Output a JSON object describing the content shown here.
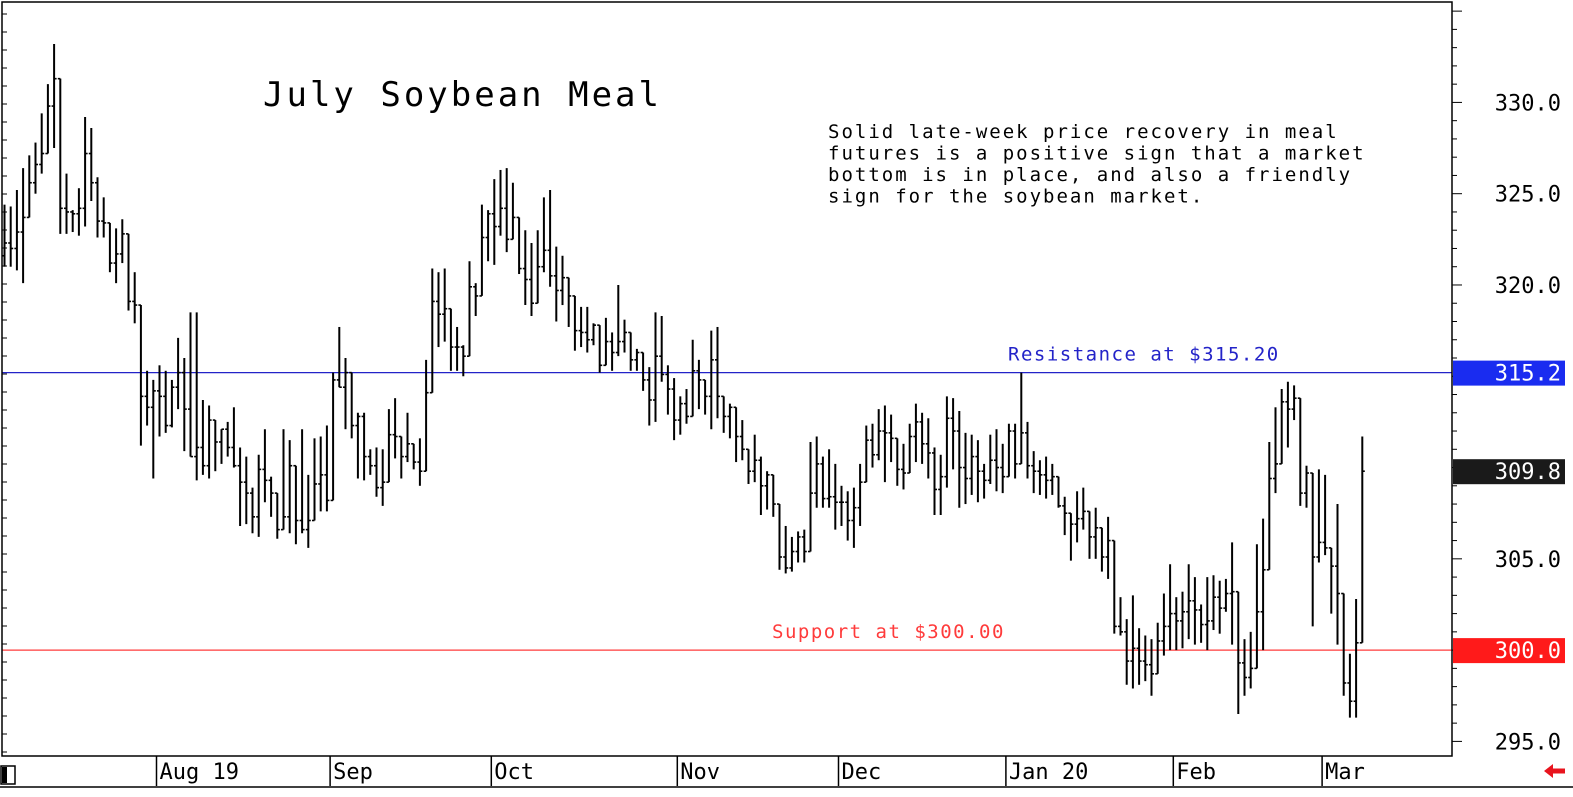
{
  "chart_data": {
    "type": "ohlc",
    "title": "July Soybean Meal",
    "annotation": [
      "Solid late-week price recovery in meal",
      "futures is a positive sign that a market",
      "bottom is in place, and also a friendly",
      "sign for the soybean market."
    ],
    "ylim": [
      294.2,
      335.5
    ],
    "y_ticks": [
      {
        "value": 330,
        "label": "330.0"
      },
      {
        "value": 325,
        "label": "325.0"
      },
      {
        "value": 320,
        "label": "320.0"
      },
      {
        "value": 305,
        "label": "305.0"
      },
      {
        "value": 295,
        "label": "295.0"
      }
    ],
    "x_ticks": [
      {
        "bar": 25,
        "label": "Aug 19"
      },
      {
        "bar": 53,
        "label": "Sep"
      },
      {
        "bar": 79,
        "label": "Oct"
      },
      {
        "bar": 109,
        "label": "Nov"
      },
      {
        "bar": 135,
        "label": "Dec"
      },
      {
        "bar": 162,
        "label": "Jan 20"
      },
      {
        "bar": 189,
        "label": "Feb"
      },
      {
        "bar": 213,
        "label": "Mar"
      }
    ],
    "horizontal_lines": [
      {
        "name": "resistance",
        "value": 315.2,
        "label": "Resistance at $315.20",
        "badge": "315.2",
        "color": "#2323c8",
        "badge_color": "#1a2cf0"
      },
      {
        "name": "support",
        "value": 300.0,
        "label": "Support at $300.00",
        "badge": "300.0",
        "color": "#ff3b3b",
        "badge_color": "#ff1a1a"
      }
    ],
    "last_price": {
      "value": 309.8,
      "label": "309.8",
      "badge_color": "#1a1a1a"
    },
    "bars": [
      [
        321.6,
        324.4,
        321.0,
        322.3
      ],
      [
        322.3,
        324.3,
        321.0,
        322.0
      ],
      [
        322.0,
        325.2,
        320.8,
        322.9
      ],
      [
        322.9,
        326.4,
        320.1,
        323.7
      ],
      [
        323.7,
        327.1,
        324.0,
        325.6
      ],
      [
        325.6,
        327.8,
        325.0,
        326.6
      ],
      [
        326.6,
        329.4,
        326.1,
        327.2
      ],
      [
        327.2,
        331.0,
        327.8,
        329.8
      ],
      [
        329.8,
        333.2,
        327.5,
        331.3
      ],
      [
        331.3,
        327.1,
        322.8,
        324.2
      ],
      [
        324.2,
        326.1,
        322.8,
        324.0
      ],
      [
        324.0,
        324.1,
        322.9,
        323.9
      ],
      [
        323.9,
        325.3,
        322.7,
        324.2
      ],
      [
        324.2,
        329.2,
        323.2,
        327.2
      ],
      [
        327.2,
        328.6,
        324.6,
        325.6
      ],
      [
        325.6,
        325.9,
        322.6,
        323.5
      ],
      [
        323.5,
        324.8,
        322.6,
        323.4
      ],
      [
        323.4,
        323.4,
        320.7,
        321.2
      ],
      [
        321.2,
        323.1,
        320.1,
        321.7
      ],
      [
        321.7,
        323.6,
        321.2,
        322.8
      ],
      [
        322.8,
        322.6,
        318.6,
        319.1
      ],
      [
        319.1,
        320.7,
        317.9,
        318.9
      ],
      [
        318.9,
        317.5,
        311.2,
        313.9
      ],
      [
        313.9,
        315.3,
        312.3,
        313.3
      ],
      [
        313.3,
        314.8,
        309.4,
        314.2
      ],
      [
        314.2,
        315.6,
        311.7,
        313.9
      ],
      [
        313.9,
        315.3,
        311.9,
        312.3
      ],
      [
        312.3,
        314.8,
        312.2,
        314.4
      ],
      [
        314.4,
        317.1,
        313.2,
        315.2
      ],
      [
        315.2,
        316.0,
        310.9,
        313.2
      ],
      [
        313.2,
        318.5,
        310.6,
        310.6
      ],
      [
        310.6,
        318.5,
        309.3,
        311.1
      ],
      [
        311.1,
        313.7,
        309.6,
        310.1
      ],
      [
        310.1,
        313.4,
        309.4,
        312.6
      ],
      [
        312.6,
        312.6,
        309.8,
        311.4
      ],
      [
        311.4,
        312.1,
        310.2,
        312.1
      ],
      [
        312.1,
        312.5,
        310.6,
        311.1
      ],
      [
        311.1,
        313.3,
        310.0,
        310.1
      ],
      [
        310.1,
        311.1,
        306.8,
        309.2
      ],
      [
        309.2,
        310.6,
        306.9,
        308.6
      ],
      [
        308.6,
        308.9,
        306.4,
        307.3
      ],
      [
        307.3,
        310.7,
        306.2,
        309.9
      ],
      [
        309.9,
        312.1,
        308.1,
        309.3
      ],
      [
        309.3,
        309.5,
        307.3,
        308.6
      ],
      [
        308.6,
        307.4,
        306.1,
        306.6
      ],
      [
        306.6,
        312.1,
        306.7,
        307.3
      ],
      [
        307.3,
        311.5,
        306.4,
        310.1
      ],
      [
        310.1,
        307.7,
        305.8,
        307.1
      ],
      [
        307.1,
        312.1,
        306.4,
        306.6
      ],
      [
        306.6,
        309.6,
        305.6,
        307.1
      ],
      [
        307.1,
        311.6,
        307.1,
        309.1
      ],
      [
        309.1,
        311.7,
        307.6,
        309.6
      ],
      [
        309.6,
        312.3,
        307.6,
        308.2
      ],
      [
        308.2,
        315.2,
        310.4,
        314.8
      ],
      [
        314.8,
        317.7,
        314.4,
        314.4
      ],
      [
        314.4,
        316.0,
        312.1,
        315.2
      ],
      [
        315.2,
        313.6,
        311.6,
        312.3
      ],
      [
        312.3,
        313.0,
        309.4,
        312.8
      ],
      [
        312.8,
        313.0,
        309.3,
        310.6
      ],
      [
        310.6,
        311.0,
        309.6,
        310.1
      ],
      [
        310.1,
        311.1,
        308.4,
        308.9
      ],
      [
        308.9,
        311.0,
        307.9,
        309.2
      ],
      [
        309.2,
        313.2,
        309.8,
        311.8
      ],
      [
        311.8,
        313.8,
        310.5,
        311.7
      ],
      [
        311.7,
        311.0,
        309.4,
        310.6
      ],
      [
        310.6,
        313.0,
        310.3,
        311.3
      ],
      [
        311.3,
        311.3,
        309.9,
        310.3
      ],
      [
        310.3,
        311.6,
        309.0,
        309.8
      ],
      [
        309.8,
        315.9,
        310.2,
        314.1
      ],
      [
        314.1,
        320.9,
        315.3,
        319.1
      ],
      [
        319.1,
        320.7,
        316.6,
        318.4
      ],
      [
        318.4,
        320.9,
        316.9,
        318.7
      ],
      [
        318.7,
        318.0,
        315.3,
        316.6
      ],
      [
        316.6,
        317.7,
        315.3,
        316.6
      ],
      [
        316.6,
        316.7,
        315.0,
        316.1
      ],
      [
        316.1,
        321.3,
        316.5,
        319.9
      ],
      [
        319.9,
        320.1,
        318.3,
        319.4
      ],
      [
        319.4,
        324.4,
        320.0,
        322.6
      ],
      [
        322.6,
        324.1,
        321.3,
        323.9
      ],
      [
        323.9,
        325.8,
        321.1,
        323.2
      ],
      [
        323.2,
        326.3,
        322.7,
        324.2
      ],
      [
        324.2,
        326.4,
        321.8,
        322.5
      ],
      [
        322.5,
        325.6,
        322.5,
        323.7
      ],
      [
        323.7,
        323.4,
        320.6,
        320.9
      ],
      [
        320.9,
        323.0,
        318.9,
        320.3
      ],
      [
        320.3,
        322.3,
        318.3,
        319.0
      ],
      [
        319.0,
        323.0,
        320.1,
        321.0
      ],
      [
        321.0,
        324.8,
        320.7,
        321.9
      ],
      [
        321.9,
        325.2,
        319.9,
        320.5
      ],
      [
        320.5,
        322.1,
        318.0,
        319.7
      ],
      [
        319.7,
        321.6,
        318.9,
        320.4
      ],
      [
        320.4,
        320.1,
        317.7,
        319.4
      ],
      [
        319.4,
        318.8,
        316.4,
        317.5
      ],
      [
        317.5,
        318.8,
        316.6,
        317.4
      ],
      [
        317.4,
        318.8,
        316.3,
        317.0
      ],
      [
        317.0,
        317.9,
        316.7,
        317.8
      ],
      [
        317.8,
        316.9,
        315.2,
        315.6
      ],
      [
        315.6,
        318.2,
        315.8,
        316.9
      ],
      [
        316.9,
        317.4,
        315.3,
        316.3
      ],
      [
        316.3,
        320.0,
        316.1,
        316.9
      ],
      [
        316.9,
        318.1,
        316.3,
        317.4
      ],
      [
        317.4,
        317.1,
        315.3,
        315.9
      ],
      [
        315.9,
        316.5,
        315.3,
        316.3
      ],
      [
        316.3,
        315.9,
        314.2,
        314.8
      ],
      [
        314.8,
        315.5,
        312.3,
        313.7
      ],
      [
        313.7,
        318.5,
        312.5,
        316.1
      ],
      [
        316.1,
        318.3,
        314.7,
        315.1
      ],
      [
        315.1,
        315.6,
        312.9,
        314.3
      ],
      [
        314.3,
        314.9,
        311.5,
        312.6
      ],
      [
        312.6,
        313.9,
        311.8,
        313.5
      ],
      [
        313.5,
        314.3,
        312.4,
        312.8
      ],
      [
        312.8,
        317.0,
        313.3,
        315.3
      ],
      [
        315.3,
        315.9,
        313.2,
        314.8
      ],
      [
        314.8,
        314.6,
        312.9,
        313.9
      ],
      [
        313.9,
        317.5,
        312.1,
        315.9
      ],
      [
        315.9,
        317.7,
        312.7,
        313.9
      ],
      [
        313.9,
        313.6,
        311.9,
        312.8
      ],
      [
        312.8,
        313.5,
        311.6,
        313.3
      ],
      [
        313.3,
        313.2,
        310.3,
        311.7
      ],
      [
        311.7,
        312.6,
        310.4,
        311.0
      ],
      [
        311.0,
        310.3,
        309.1,
        309.8
      ],
      [
        309.8,
        311.8,
        309.2,
        310.4
      ],
      [
        310.4,
        310.6,
        307.4,
        309.0
      ],
      [
        309.0,
        309.8,
        307.7,
        309.6
      ],
      [
        309.6,
        308.3,
        307.3,
        308.0
      ],
      [
        308.0,
        306.6,
        304.4,
        305.1
      ],
      [
        305.1,
        306.8,
        304.2,
        304.5
      ],
      [
        304.5,
        306.2,
        304.3,
        305.4
      ],
      [
        305.4,
        306.5,
        304.8,
        306.2
      ],
      [
        306.2,
        306.6,
        304.8,
        305.4
      ],
      [
        305.4,
        311.4,
        305.7,
        308.6
      ],
      [
        308.6,
        311.7,
        307.8,
        310.2
      ],
      [
        310.2,
        310.6,
        307.8,
        308.3
      ],
      [
        308.3,
        311.0,
        307.8,
        308.4
      ],
      [
        308.4,
        310.2,
        306.6,
        308.1
      ],
      [
        308.1,
        309.0,
        306.8,
        308.1
      ],
      [
        308.1,
        308.7,
        306.0,
        307.1
      ],
      [
        307.1,
        308.9,
        305.6,
        307.8
      ],
      [
        307.8,
        310.2,
        306.8,
        309.2
      ],
      [
        309.2,
        312.3,
        310.0,
        311.5
      ],
      [
        311.5,
        312.4,
        310.0,
        310.7
      ],
      [
        310.7,
        313.2,
        310.4,
        312.0
      ],
      [
        312.0,
        313.4,
        309.2,
        311.9
      ],
      [
        311.9,
        312.9,
        310.3,
        311.6
      ],
      [
        311.6,
        311.5,
        309.0,
        309.9
      ],
      [
        309.9,
        311.3,
        308.8,
        309.7
      ],
      [
        309.7,
        312.4,
        309.9,
        311.7
      ],
      [
        311.7,
        313.5,
        310.3,
        312.5
      ],
      [
        312.5,
        313.0,
        310.2,
        311.3
      ],
      [
        311.3,
        312.7,
        309.4,
        310.8
      ],
      [
        310.8,
        311.1,
        307.4,
        308.8
      ],
      [
        308.8,
        310.7,
        307.4,
        309.5
      ],
      [
        309.5,
        313.9,
        308.9,
        312.7
      ],
      [
        312.7,
        313.8,
        309.9,
        312.0
      ],
      [
        312.0,
        313.1,
        307.8,
        310.0
      ],
      [
        310.0,
        311.9,
        308.0,
        309.4
      ],
      [
        309.4,
        311.8,
        308.5,
        310.6
      ],
      [
        310.6,
        311.5,
        308.1,
        309.8
      ],
      [
        309.8,
        310.2,
        308.3,
        309.3
      ],
      [
        309.3,
        311.8,
        309.1,
        310.4
      ],
      [
        310.4,
        312.1,
        308.7,
        310.0
      ],
      [
        310.0,
        311.3,
        308.6,
        309.5
      ],
      [
        309.5,
        312.4,
        309.9,
        312.0
      ],
      [
        312.0,
        312.4,
        309.4,
        310.2
      ],
      [
        310.2,
        315.2,
        310.3,
        311.9
      ],
      [
        311.9,
        312.5,
        309.4,
        310.1
      ],
      [
        310.1,
        310.9,
        308.6,
        309.8
      ],
      [
        309.8,
        310.4,
        308.5,
        309.6
      ],
      [
        309.6,
        310.6,
        308.3,
        309.3
      ],
      [
        309.3,
        310.2,
        308.5,
        309.5
      ],
      [
        309.5,
        308.8,
        307.8,
        307.9
      ],
      [
        307.9,
        308.4,
        306.3,
        307.5
      ],
      [
        307.5,
        307.3,
        304.9,
        306.9
      ],
      [
        306.9,
        308.7,
        305.9,
        307.2
      ],
      [
        307.2,
        308.9,
        306.6,
        307.6
      ],
      [
        307.6,
        307.1,
        305.0,
        306.2
      ],
      [
        306.2,
        307.8,
        305.0,
        306.7
      ],
      [
        306.7,
        306.1,
        304.3,
        305.1
      ],
      [
        305.1,
        307.3,
        303.9,
        306.0
      ],
      [
        306.0,
        303.5,
        300.9,
        301.3
      ],
      [
        301.3,
        302.9,
        300.8,
        301.0
      ],
      [
        301.0,
        301.7,
        298.1,
        299.4
      ],
      [
        299.4,
        303.0,
        297.9,
        300.1
      ],
      [
        300.1,
        301.2,
        298.1,
        299.4
      ],
      [
        299.4,
        300.8,
        298.3,
        299.2
      ],
      [
        299.2,
        300.6,
        297.5,
        298.7
      ],
      [
        298.7,
        301.5,
        299.5,
        300.5
      ],
      [
        300.5,
        303.1,
        299.7,
        301.3
      ],
      [
        301.3,
        304.7,
        300.0,
        302.0
      ],
      [
        302.0,
        302.9,
        300.0,
        301.6
      ],
      [
        301.6,
        303.2,
        300.1,
        302.1
      ],
      [
        302.1,
        304.7,
        300.6,
        302.7
      ],
      [
        302.7,
        304.0,
        300.3,
        302.2
      ],
      [
        302.2,
        302.5,
        300.4,
        301.4
      ],
      [
        301.4,
        304.0,
        300.0,
        301.6
      ],
      [
        301.6,
        304.1,
        301.1,
        302.9
      ],
      [
        302.9,
        303.8,
        300.9,
        302.3
      ],
      [
        302.3,
        303.9,
        302.1,
        303.1
      ],
      [
        303.1,
        305.9,
        300.3,
        303.2
      ],
      [
        303.2,
        300.1,
        296.5,
        299.3
      ],
      [
        299.3,
        300.6,
        297.5,
        298.5
      ],
      [
        298.5,
        301.0,
        297.9,
        299.0
      ],
      [
        299.0,
        305.8,
        299.8,
        302.1
      ],
      [
        302.1,
        307.2,
        300.0,
        304.4
      ],
      [
        304.4,
        311.4,
        306.4,
        309.4
      ],
      [
        309.4,
        313.3,
        308.6,
        310.2
      ],
      [
        310.2,
        314.3,
        310.7,
        313.6
      ],
      [
        313.6,
        314.7,
        311.1,
        313.2
      ],
      [
        313.2,
        314.5,
        312.6,
        313.8
      ],
      [
        313.8,
        313.3,
        307.9,
        308.6
      ],
      [
        308.6,
        310.1,
        307.8,
        309.7
      ],
      [
        309.7,
        308.0,
        301.3,
        305.1
      ],
      [
        305.1,
        309.9,
        304.8,
        305.9
      ],
      [
        305.9,
        309.6,
        305.2,
        305.6
      ],
      [
        305.6,
        305.3,
        302.0,
        304.6
      ],
      [
        304.6,
        308.0,
        300.3,
        303.1
      ],
      [
        303.1,
        302.6,
        297.5,
        298.2
      ],
      [
        298.2,
        299.8,
        296.3,
        297.2
      ],
      [
        297.2,
        302.8,
        296.3,
        300.4
      ],
      [
        300.4,
        311.7,
        300.5,
        309.8
      ]
    ]
  }
}
